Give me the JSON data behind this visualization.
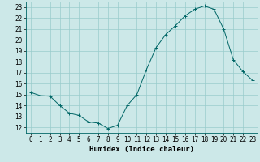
{
  "x": [
    0,
    1,
    2,
    3,
    4,
    5,
    6,
    7,
    8,
    9,
    10,
    11,
    12,
    13,
    14,
    15,
    16,
    17,
    18,
    19,
    20,
    21,
    22,
    23
  ],
  "y": [
    15.2,
    14.9,
    14.85,
    14.0,
    13.3,
    13.1,
    12.5,
    12.4,
    11.9,
    12.2,
    14.0,
    15.0,
    17.3,
    19.3,
    20.5,
    21.3,
    22.2,
    22.8,
    23.1,
    22.8,
    21.0,
    18.2,
    17.1,
    16.3
  ],
  "xlabel": "Humidex (Indice chaleur)",
  "xlim": [
    -0.5,
    23.5
  ],
  "ylim": [
    11.5,
    23.5
  ],
  "yticks": [
    12,
    13,
    14,
    15,
    16,
    17,
    18,
    19,
    20,
    21,
    22,
    23
  ],
  "xticks": [
    0,
    1,
    2,
    3,
    4,
    5,
    6,
    7,
    8,
    9,
    10,
    11,
    12,
    13,
    14,
    15,
    16,
    17,
    18,
    19,
    20,
    21,
    22,
    23
  ],
  "line_color": "#006666",
  "bg_color": "#cce8e8",
  "grid_color": "#99cccc",
  "tick_fontsize": 5.5,
  "label_fontsize": 6.5
}
